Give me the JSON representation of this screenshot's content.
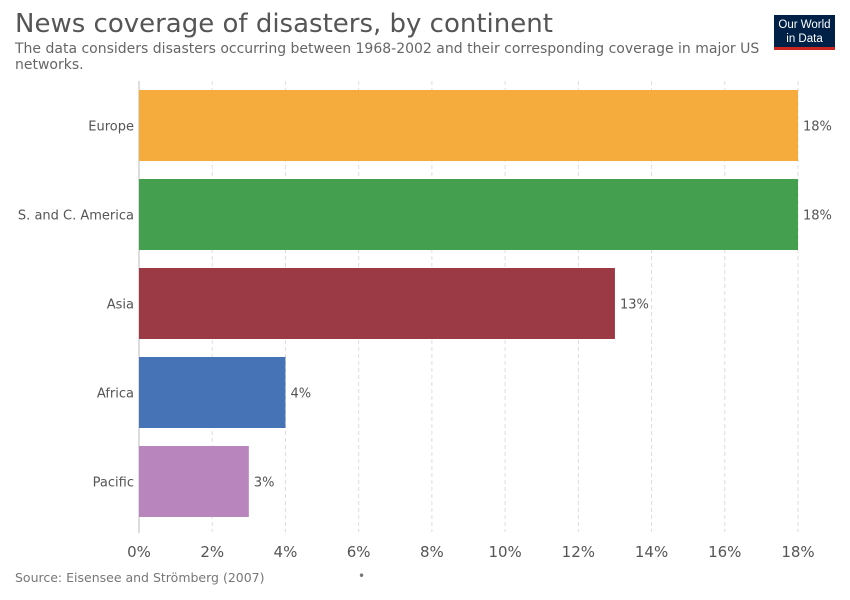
{
  "header": {
    "title": "News coverage of disasters, by continent",
    "subtitle": "The data considers disasters occurring between 1968-2002 and their corresponding coverage in major US networks."
  },
  "logo": {
    "line1": "Our World",
    "line2": "in Data"
  },
  "footer": {
    "source": "Source: Eisensee and Strömberg (2007)",
    "separator": "•"
  },
  "colors": {
    "grid": "#dddddd",
    "axis_text": "#555555",
    "logo_bg": "#002147",
    "logo_accent": "#ce261e"
  },
  "chart_data": {
    "type": "bar",
    "orientation": "horizontal",
    "title": "News coverage of disasters, by continent",
    "categories": [
      "Europe",
      "S. and C. America",
      "Asia",
      "Africa",
      "Pacific"
    ],
    "values": [
      18,
      18,
      13,
      4,
      3
    ],
    "data_labels": [
      "18%",
      "18%",
      "13%",
      "4%",
      "3%"
    ],
    "colors": [
      "#f5ac3c",
      "#44a04f",
      "#9b3a45",
      "#4672b6",
      "#b985bd"
    ],
    "xlim": [
      0,
      18
    ],
    "xticks": [
      0,
      2,
      4,
      6,
      8,
      10,
      12,
      14,
      16,
      18
    ],
    "xtick_labels": [
      "0%",
      "2%",
      "4%",
      "6%",
      "8%",
      "10%",
      "12%",
      "14%",
      "16%",
      "18%"
    ],
    "grid": "vertical dashed",
    "legend": "none"
  }
}
